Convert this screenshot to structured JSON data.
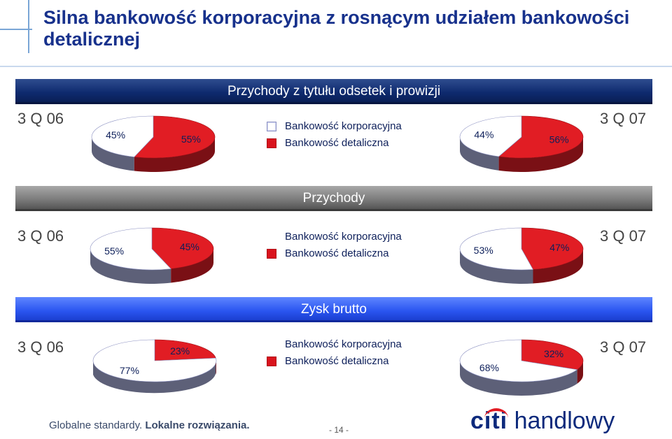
{
  "title": "Silna bankowość korporacyjna z rosnącym udziałem bankowości detalicznej",
  "legend": {
    "corporate": "Bankowość korporacyjna",
    "retail": "Bankowość detaliczna"
  },
  "colors": {
    "corporate": "#ffffff",
    "retail": "#e11d24",
    "band_income": "#0e2a6e",
    "band_revenue": "#7a7a7a",
    "band_profit": "#2a55f0"
  },
  "footer": {
    "slogan_normal": "Globalne standardy.",
    "slogan_bold": "Lokalne rozwiązania.",
    "page_number": "- 14 -",
    "logo_citi": "citi",
    "logo_rest": "handlowy"
  },
  "chart_data": [
    {
      "type": "pie",
      "title": "Przychody z tytułu odsetek i prowizji",
      "charts": [
        {
          "period": "3 Q 06",
          "labels": [
            "Bankowość korporacyjna",
            "Bankowość detaliczna"
          ],
          "values": [
            45,
            55
          ],
          "value_labels": [
            "45%",
            "55%"
          ]
        },
        {
          "period": "3 Q 07",
          "labels": [
            "Bankowość korporacyjna",
            "Bankowość detaliczna"
          ],
          "values": [
            44,
            56
          ],
          "value_labels": [
            "44%",
            "56%"
          ]
        }
      ]
    },
    {
      "type": "pie",
      "title": "Przychody",
      "charts": [
        {
          "period": "3 Q 06",
          "labels": [
            "Bankowość korporacyjna",
            "Bankowość detaliczna"
          ],
          "values": [
            55,
            45
          ],
          "value_labels": [
            "55%",
            "45%"
          ]
        },
        {
          "period": "3 Q 07",
          "labels": [
            "Bankowość korporacyjna",
            "Bankowość detaliczna"
          ],
          "values": [
            53,
            47
          ],
          "value_labels": [
            "53%",
            "47%"
          ]
        }
      ]
    },
    {
      "type": "pie",
      "title": "Zysk brutto",
      "charts": [
        {
          "period": "3 Q 06",
          "labels": [
            "Bankowość korporacyjna",
            "Bankowość detaliczna"
          ],
          "values": [
            77,
            23
          ],
          "value_labels": [
            "77%",
            "23%"
          ]
        },
        {
          "period": "3 Q 07",
          "labels": [
            "Bankowość korporacyjna",
            "Bankowość detaliczna"
          ],
          "values": [
            68,
            32
          ],
          "value_labels": [
            "68%",
            "32%"
          ]
        }
      ]
    }
  ]
}
